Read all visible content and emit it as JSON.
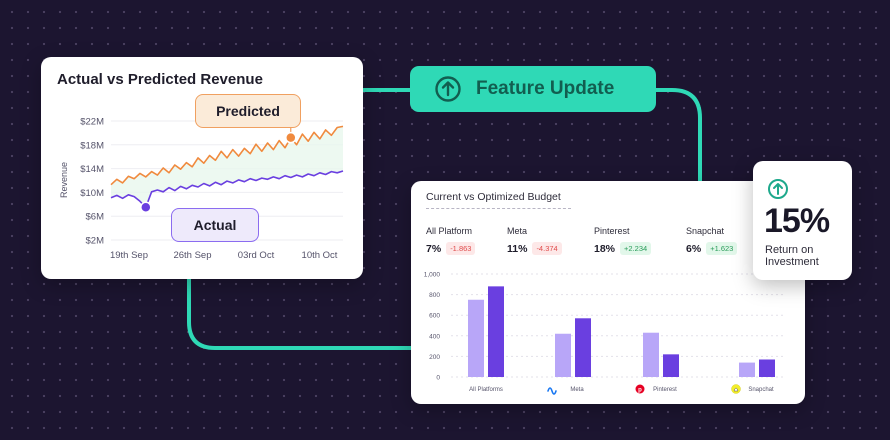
{
  "colors": {
    "background": "#1c1530",
    "accent_teal": "#2fd9b6",
    "predicted": "#f08a3e",
    "actual": "#6a3fe0",
    "bar_current": "#b8a6f8",
    "bar_optimized": "#6a3fe0",
    "positive": "#2a9d5a",
    "negative": "#e04b4b"
  },
  "feature": {
    "label": "Feature Update",
    "icon": "arrow-up-circle-icon"
  },
  "roi": {
    "value": "15%",
    "label_line1": "Return on",
    "label_line2": "Investment",
    "icon": "arrow-up-circle-icon"
  },
  "budget": {
    "title": "Current vs Optimized Budget",
    "metrics": [
      {
        "name": "All Platform",
        "value": "7%",
        "delta": "-1.863",
        "trend": "negative"
      },
      {
        "name": "Meta",
        "value": "11%",
        "delta": "-4.374",
        "trend": "negative"
      },
      {
        "name": "Pinterest",
        "value": "18%",
        "delta": "+2.234",
        "trend": "positive"
      },
      {
        "name": "Snapchat",
        "value": "6%",
        "delta": "+1.623",
        "trend": "positive"
      }
    ]
  },
  "revenue_labels": {
    "predicted": "Predicted",
    "actual": "Actual"
  },
  "chart_data": [
    {
      "type": "line",
      "title": "Actual vs Predicted Revenue",
      "ylabel": "Revenue",
      "y_ticks": [
        "$22M",
        "$18M",
        "$14M",
        "$10M",
        "$6M",
        "$2M"
      ],
      "ylim": [
        2,
        22
      ],
      "x_ticks": [
        "19th Sep",
        "26th Sep",
        "03rd Oct",
        "10th Oct"
      ],
      "grid": true,
      "series": [
        {
          "name": "Predicted",
          "x": [
            0,
            1,
            2,
            3,
            4,
            5,
            6,
            7,
            8,
            9,
            10,
            11,
            12,
            13,
            14,
            15,
            16,
            17,
            18,
            19,
            20,
            21,
            22,
            23,
            24,
            25,
            26,
            27,
            28,
            29,
            30,
            31,
            32,
            33,
            34,
            35,
            36,
            37,
            38,
            39,
            40
          ],
          "values": [
            11.3,
            12.2,
            11.6,
            12.7,
            12.3,
            13.2,
            12.6,
            13.5,
            12.9,
            14.1,
            13.3,
            14.6,
            13.9,
            15.0,
            14.3,
            15.8,
            14.9,
            16.2,
            15.4,
            16.9,
            15.8,
            17.2,
            16.1,
            17.4,
            16.5,
            18.1,
            16.9,
            18.3,
            17.2,
            18.7,
            17.5,
            19.2,
            18.0,
            19.8,
            18.6,
            20.1,
            19.0,
            20.5,
            19.6,
            20.9,
            21.1
          ]
        },
        {
          "name": "Actual",
          "x": [
            0,
            1,
            2,
            3,
            4,
            5,
            6,
            7,
            8,
            9,
            10,
            11,
            12,
            13,
            14,
            15,
            16,
            17,
            18,
            19,
            20,
            21,
            22,
            23,
            24,
            25,
            26,
            27,
            28,
            29,
            30,
            31,
            32,
            33,
            34,
            35,
            36,
            37,
            38,
            39,
            40
          ],
          "values": [
            9.1,
            9.5,
            9.0,
            9.6,
            9.3,
            8.5,
            7.5,
            10.1,
            10.4,
            10.1,
            10.8,
            10.3,
            11.0,
            10.6,
            11.2,
            10.9,
            11.5,
            11.1,
            11.7,
            11.3,
            11.9,
            11.6,
            12.1,
            11.8,
            12.3,
            12.0,
            12.4,
            12.2,
            12.6,
            12.3,
            12.8,
            12.5,
            12.9,
            12.6,
            13.1,
            12.8,
            13.3,
            13.0,
            13.5,
            13.3,
            13.6
          ]
        }
      ],
      "markers": {
        "predicted_index": 31,
        "actual_index": 6
      }
    },
    {
      "type": "bar",
      "title": "Current vs Optimized Budget",
      "categories": [
        "All Platforms",
        "Meta",
        "Pinterest",
        "Snapchat"
      ],
      "category_icons": [
        "",
        "meta-icon",
        "pinterest-icon",
        "snapchat-icon"
      ],
      "y_ticks": [
        "1,000",
        "800",
        "600",
        "400",
        "200",
        "0"
      ],
      "ylim": [
        0,
        1000
      ],
      "series": [
        {
          "values": [
            750,
            420,
            430,
            140
          ]
        },
        {
          "values": [
            880,
            570,
            220,
            170
          ]
        }
      ]
    }
  ]
}
